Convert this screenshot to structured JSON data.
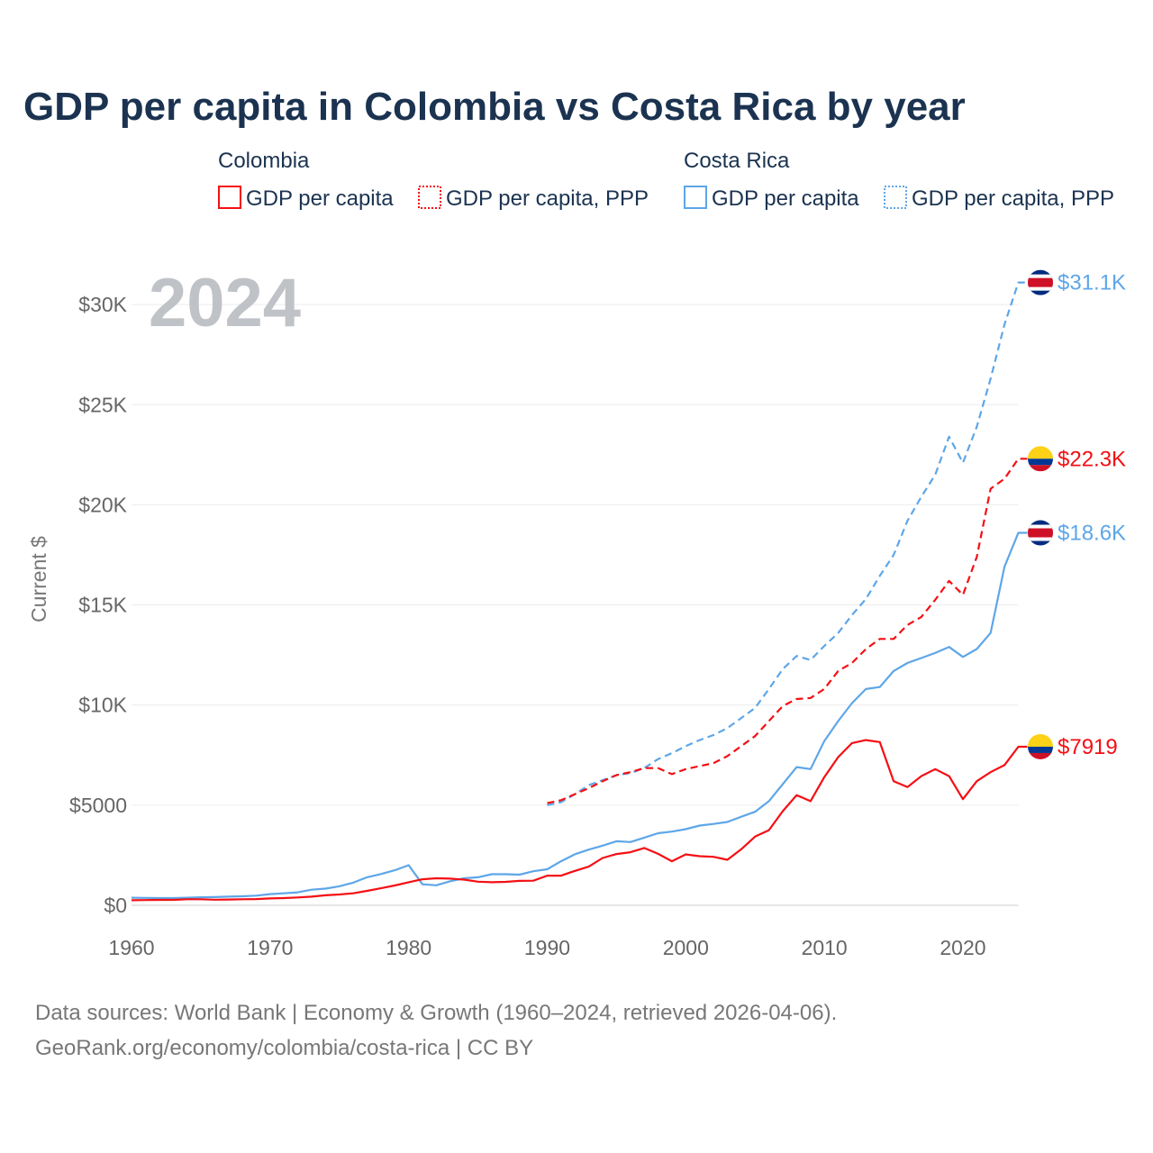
{
  "chart_data": {
    "type": "line",
    "title": "GDP per capita in Colombia vs Costa Rica by year",
    "year_watermark": "2024",
    "ylabel": "Current $",
    "xlabel": "",
    "xlim": [
      1960,
      2024
    ],
    "ylim": [
      0,
      32000
    ],
    "grid": true,
    "legend": {
      "placement": "top",
      "groups": [
        {
          "name": "Colombia",
          "entries": [
            "GDP per capita",
            "GDP per capita, PPP"
          ]
        },
        {
          "name": "Costa Rica",
          "entries": [
            "GDP per capita",
            "GDP per capita, PPP"
          ]
        }
      ]
    },
    "x_ticks": [
      1960,
      1970,
      1980,
      1990,
      2000,
      2010,
      2020
    ],
    "y_ticks": [
      {
        "value": 0,
        "label": "$0"
      },
      {
        "value": 5000,
        "label": "$5000"
      },
      {
        "value": 10000,
        "label": "$10K"
      },
      {
        "value": 15000,
        "label": "$15K"
      },
      {
        "value": 20000,
        "label": "$20K"
      },
      {
        "value": 25000,
        "label": "$25K"
      },
      {
        "value": 30000,
        "label": "$30K"
      }
    ],
    "series": [
      {
        "name": "Costa Rica GDP per capita, PPP",
        "country": "Costa Rica",
        "color": "#5ea6e8",
        "dashed": true,
        "start": 1990,
        "values": [
          5000,
          5150,
          5550,
          6000,
          6250,
          6500,
          6600,
          6850,
          7300,
          7600,
          7950,
          8250,
          8500,
          8850,
          9350,
          9850,
          10800,
          11800,
          12450,
          12250,
          12950,
          13600,
          14500,
          15300,
          16450,
          17500,
          19200,
          20400,
          21500,
          23400,
          22100,
          23900,
          26300,
          29000,
          31100
        ],
        "end_label": "$31.1K"
      },
      {
        "name": "Colombia GDP per capita, PPP",
        "country": "Colombia",
        "color": "#f40f14",
        "dashed": true,
        "start": 1990,
        "values": [
          5100,
          5250,
          5550,
          5850,
          6200,
          6500,
          6650,
          6850,
          6850,
          6550,
          6800,
          6950,
          7100,
          7450,
          7950,
          8450,
          9200,
          9950,
          10300,
          10350,
          10800,
          11700,
          12100,
          12800,
          13300,
          13300,
          14000,
          14400,
          15250,
          16200,
          15500,
          17400,
          20800,
          21300,
          22300
        ],
        "end_label": "$22.3K"
      },
      {
        "name": "Costa Rica GDP per capita",
        "country": "Costa Rica",
        "color": "#5ea6e8",
        "dashed": false,
        "start": 1960,
        "values": [
          380,
          370,
          360,
          360,
          380,
          400,
          410,
          430,
          450,
          480,
          560,
          600,
          650,
          780,
          830,
          950,
          1130,
          1400,
          1560,
          1750,
          2000,
          1050,
          1000,
          1200,
          1350,
          1400,
          1550,
          1550,
          1530,
          1700,
          1800,
          2200,
          2550,
          2780,
          2980,
          3200,
          3160,
          3380,
          3600,
          3680,
          3800,
          3980,
          4060,
          4160,
          4420,
          4670,
          5200,
          6050,
          6900,
          6800,
          8200,
          9200,
          10100,
          10800,
          10900,
          11700,
          12100,
          12350,
          12600,
          12900,
          12400,
          12800,
          13600,
          16900,
          18600
        ],
        "end_label": "$18.6K"
      },
      {
        "name": "Colombia GDP per capita",
        "country": "Colombia",
        "color": "#f40f14",
        "dashed": false,
        "start": 1960,
        "values": [
          250,
          260,
          270,
          270,
          300,
          300,
          280,
          290,
          300,
          310,
          340,
          360,
          390,
          430,
          500,
          540,
          600,
          720,
          850,
          990,
          1150,
          1300,
          1350,
          1330,
          1280,
          1180,
          1150,
          1170,
          1220,
          1230,
          1480,
          1480,
          1720,
          1930,
          2360,
          2560,
          2650,
          2860,
          2570,
          2200,
          2540,
          2450,
          2420,
          2270,
          2800,
          3430,
          3750,
          4700,
          5500,
          5200,
          6400,
          7400,
          8100,
          8250,
          8150,
          6200,
          5900,
          6450,
          6800,
          6450,
          5300,
          6200,
          6650,
          7000,
          7919
        ],
        "end_label": "$7919"
      }
    ],
    "source_line1": "Data sources: World Bank | Economy & Growth (1960–2024, retrieved 2026-04-06).",
    "source_line2": "GeoRank.org/economy/colombia/costa-rica | CC BY"
  }
}
